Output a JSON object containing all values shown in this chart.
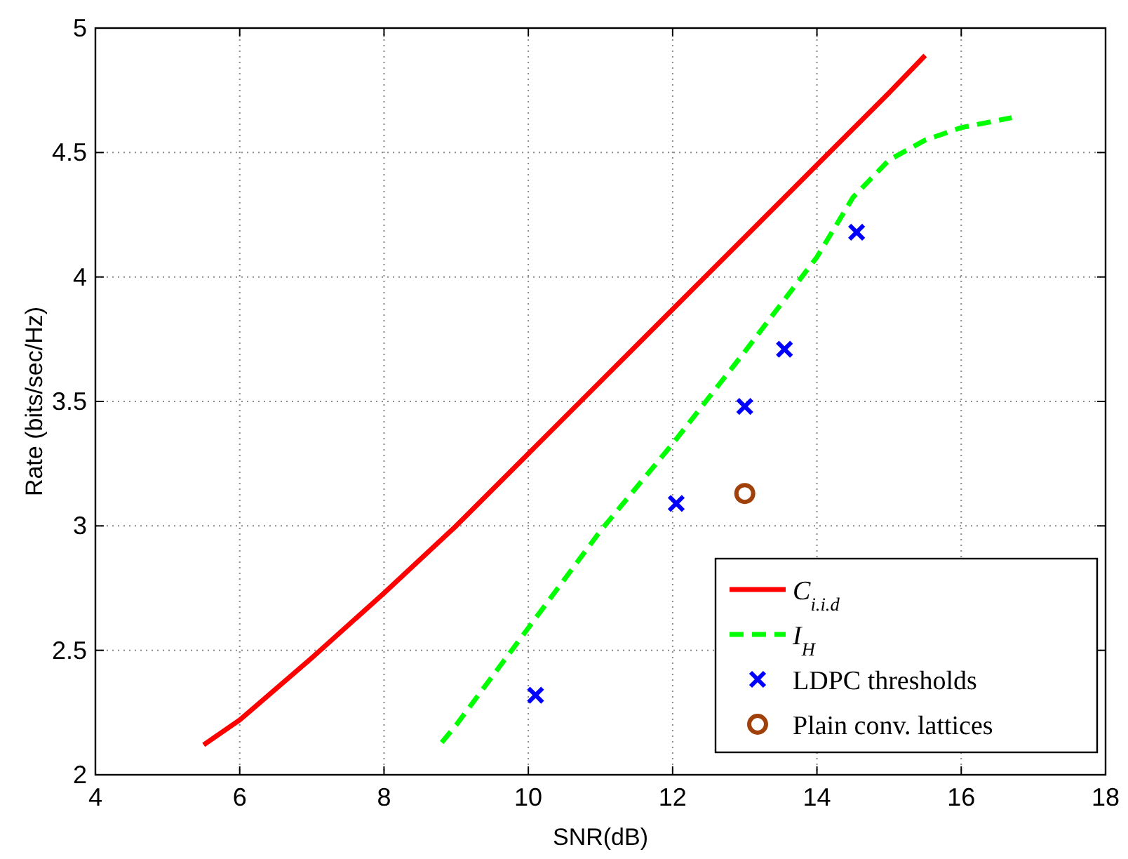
{
  "chart_data": {
    "type": "line",
    "xlabel": "SNR(dB)",
    "ylabel": "Rate (bits/sec/Hz)",
    "xlim": [
      4,
      18
    ],
    "xticks": [
      4,
      6,
      8,
      10,
      12,
      14,
      16,
      18
    ],
    "ylim": [
      2,
      5
    ],
    "yticks": [
      2,
      2.5,
      3,
      3.5,
      4,
      4.5,
      5
    ],
    "grid": true,
    "legend": "bottom right",
    "series": [
      {
        "name": "C$_{i.i.d}$",
        "color": "#ff0000",
        "line_style": "solid",
        "marker": "none",
        "x": [
          5.5,
          6,
          7,
          8,
          9,
          10,
          11,
          12,
          13,
          14,
          15,
          15.5
        ],
        "values": [
          2.12,
          2.22,
          2.47,
          2.73,
          3.0,
          3.29,
          3.58,
          3.87,
          4.16,
          4.45,
          4.74,
          4.89
        ]
      },
      {
        "name": "I$_{H}$",
        "color": "#00ff00",
        "line_style": "dashed",
        "marker": "none",
        "x": [
          8.8,
          9,
          10,
          11,
          12,
          13,
          14,
          14.5,
          15,
          15.5,
          16,
          16.7
        ],
        "values": [
          2.13,
          2.2,
          2.59,
          2.98,
          3.33,
          3.7,
          4.08,
          4.32,
          4.47,
          4.55,
          4.6,
          4.64
        ]
      },
      {
        "name": "LDPC thresholds",
        "type": "scatter",
        "color": "#0000ff",
        "marker": "cross",
        "x": [
          10.1,
          12.05,
          13,
          13.55,
          14.55
        ],
        "values": [
          2.32,
          3.09,
          3.48,
          3.71,
          4.18
        ]
      },
      {
        "name": "Plain conv. lattices",
        "type": "scatter",
        "color": "#a0400a",
        "marker": "circle",
        "x": [
          13
        ],
        "values": [
          3.13
        ]
      }
    ]
  }
}
